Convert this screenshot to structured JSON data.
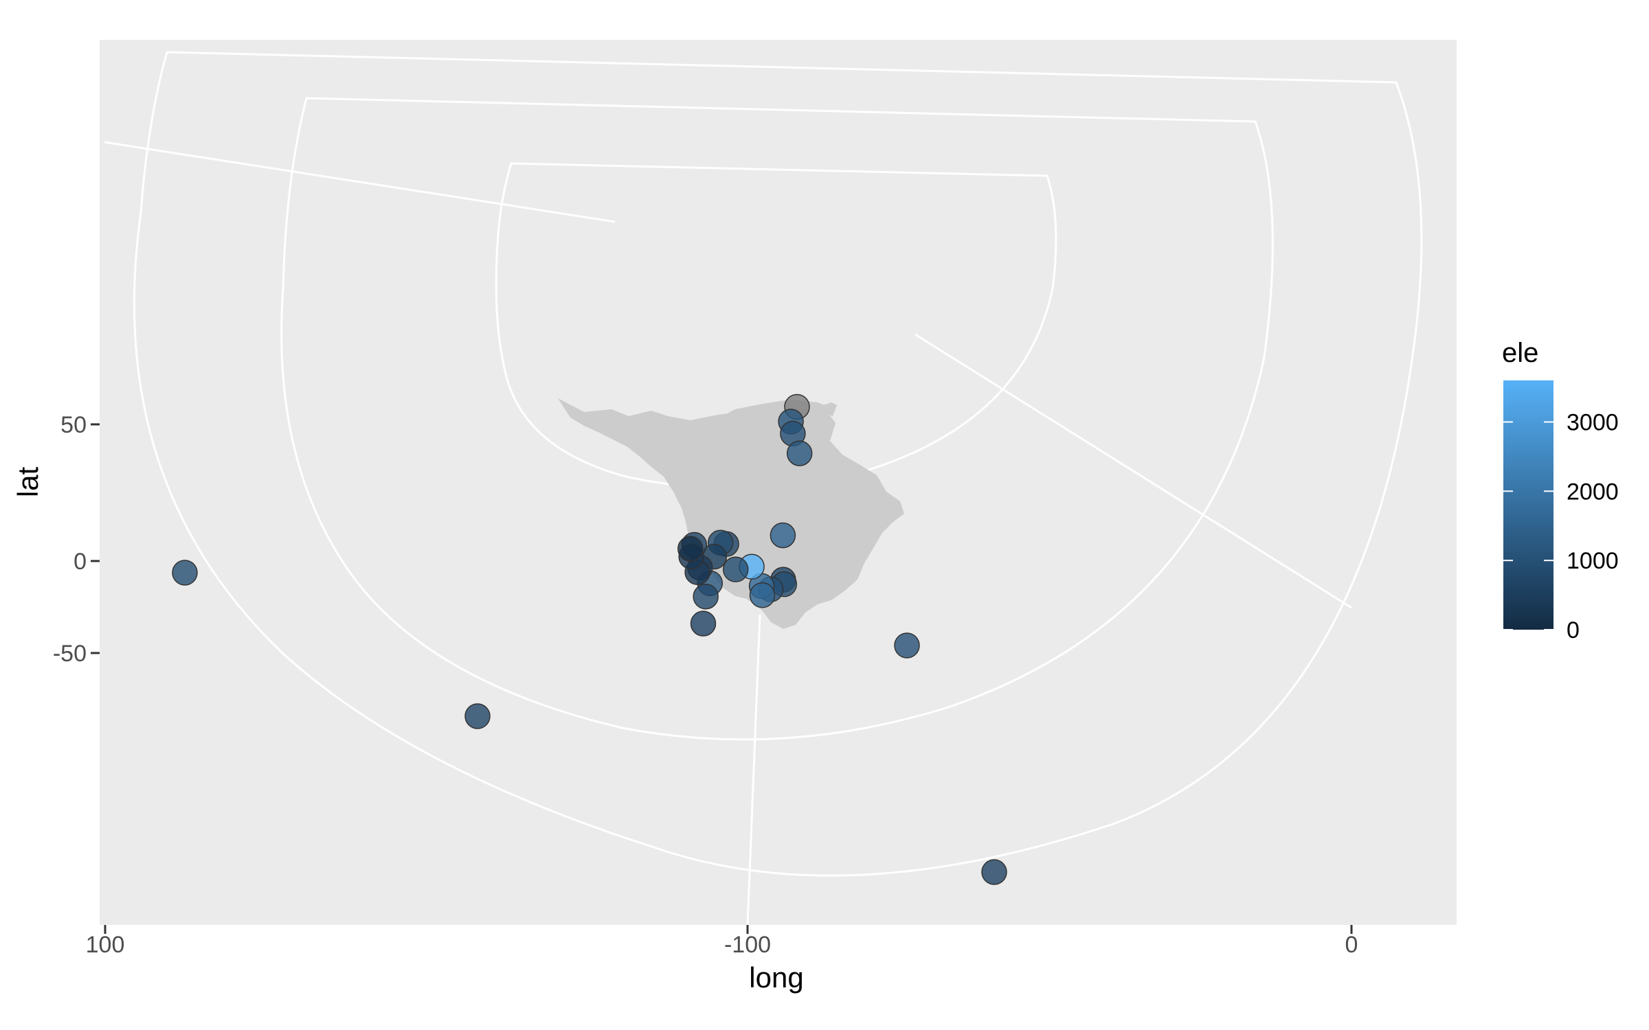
{
  "chart_data": {
    "type": "scatter",
    "title": "",
    "xlabel": "long",
    "ylabel": "lat",
    "x_ticks": [
      "100",
      "-100",
      "0"
    ],
    "y_ticks": [
      "50",
      "0",
      "-50"
    ],
    "grid": true,
    "legend": {
      "title": "ele",
      "placement": "right",
      "type": "colorbar",
      "range": [
        0,
        3600
      ],
      "breaks": [
        "3000",
        "2000",
        "1000",
        "0"
      ],
      "break_values": [
        3000,
        2000,
        1000,
        0
      ],
      "low_color": "#132b43",
      "high_color": "#56b1f7"
    },
    "colors": {
      "panel_background": "#ebebeb",
      "grid_line": "#ffffff",
      "land": "#cccccc",
      "missing_point": "#808080"
    },
    "points": [
      {
        "lon": -115.4,
        "lat": 56.4,
        "ele": null
      },
      {
        "lon": -113.5,
        "lat": 51.0,
        "ele": 1100
      },
      {
        "lon": -114.1,
        "lat": 46.6,
        "ele": 1000
      },
      {
        "lon": -116.2,
        "lat": 39.4,
        "ele": 1200
      },
      {
        "lon": -111.0,
        "lat": 9.4,
        "ele": 1500
      },
      {
        "lon": -111.1,
        "lat": -10.2,
        "ele": 700
      },
      {
        "lon": -111.4,
        "lat": -12.6,
        "ele": 900
      },
      {
        "lon": -107.2,
        "lat": -15.4,
        "ele": 1000
      },
      {
        "lon": -104.4,
        "lat": -13.6,
        "ele": 1700
      },
      {
        "lon": -104.6,
        "lat": -18.6,
        "ele": 1600
      },
      {
        "lon": -101.3,
        "lat": -3.1,
        "ele": 3600
      },
      {
        "lon": -96.3,
        "lat": -4.6,
        "ele": 900
      },
      {
        "lon": -93.4,
        "lat": 6.2,
        "ele": 700
      },
      {
        "lon": -91.6,
        "lat": 6.7,
        "ele": 900
      },
      {
        "lon": -89.6,
        "lat": 1.6,
        "ele": 500
      },
      {
        "lon": -88.3,
        "lat": -12.1,
        "ele": 1100
      },
      {
        "lon": -87.0,
        "lat": -19.3,
        "ele": 800
      },
      {
        "lon": -86.2,
        "lat": -34.0,
        "ele": 600
      },
      {
        "lon": -85.2,
        "lat": -3.6,
        "ele": 400
      },
      {
        "lon": -84.4,
        "lat": -6.1,
        "ele": 300
      },
      {
        "lon": -83.4,
        "lat": 5.9,
        "ele": 700
      },
      {
        "lon": -82.5,
        "lat": 1.6,
        "ele": 300
      },
      {
        "lon": -82.2,
        "lat": 4.5,
        "ele": 100
      },
      {
        "lon": -75.3,
        "lat": -43.9,
        "ele": 1000
      },
      {
        "lon": 86.6,
        "lat": -4.2,
        "ele": 900
      },
      {
        "lon": 139.8,
        "lat": -70.1,
        "ele": 700
      },
      {
        "lon": 140.2,
        "lat": -122.1,
        "ele": 600
      }
    ]
  }
}
